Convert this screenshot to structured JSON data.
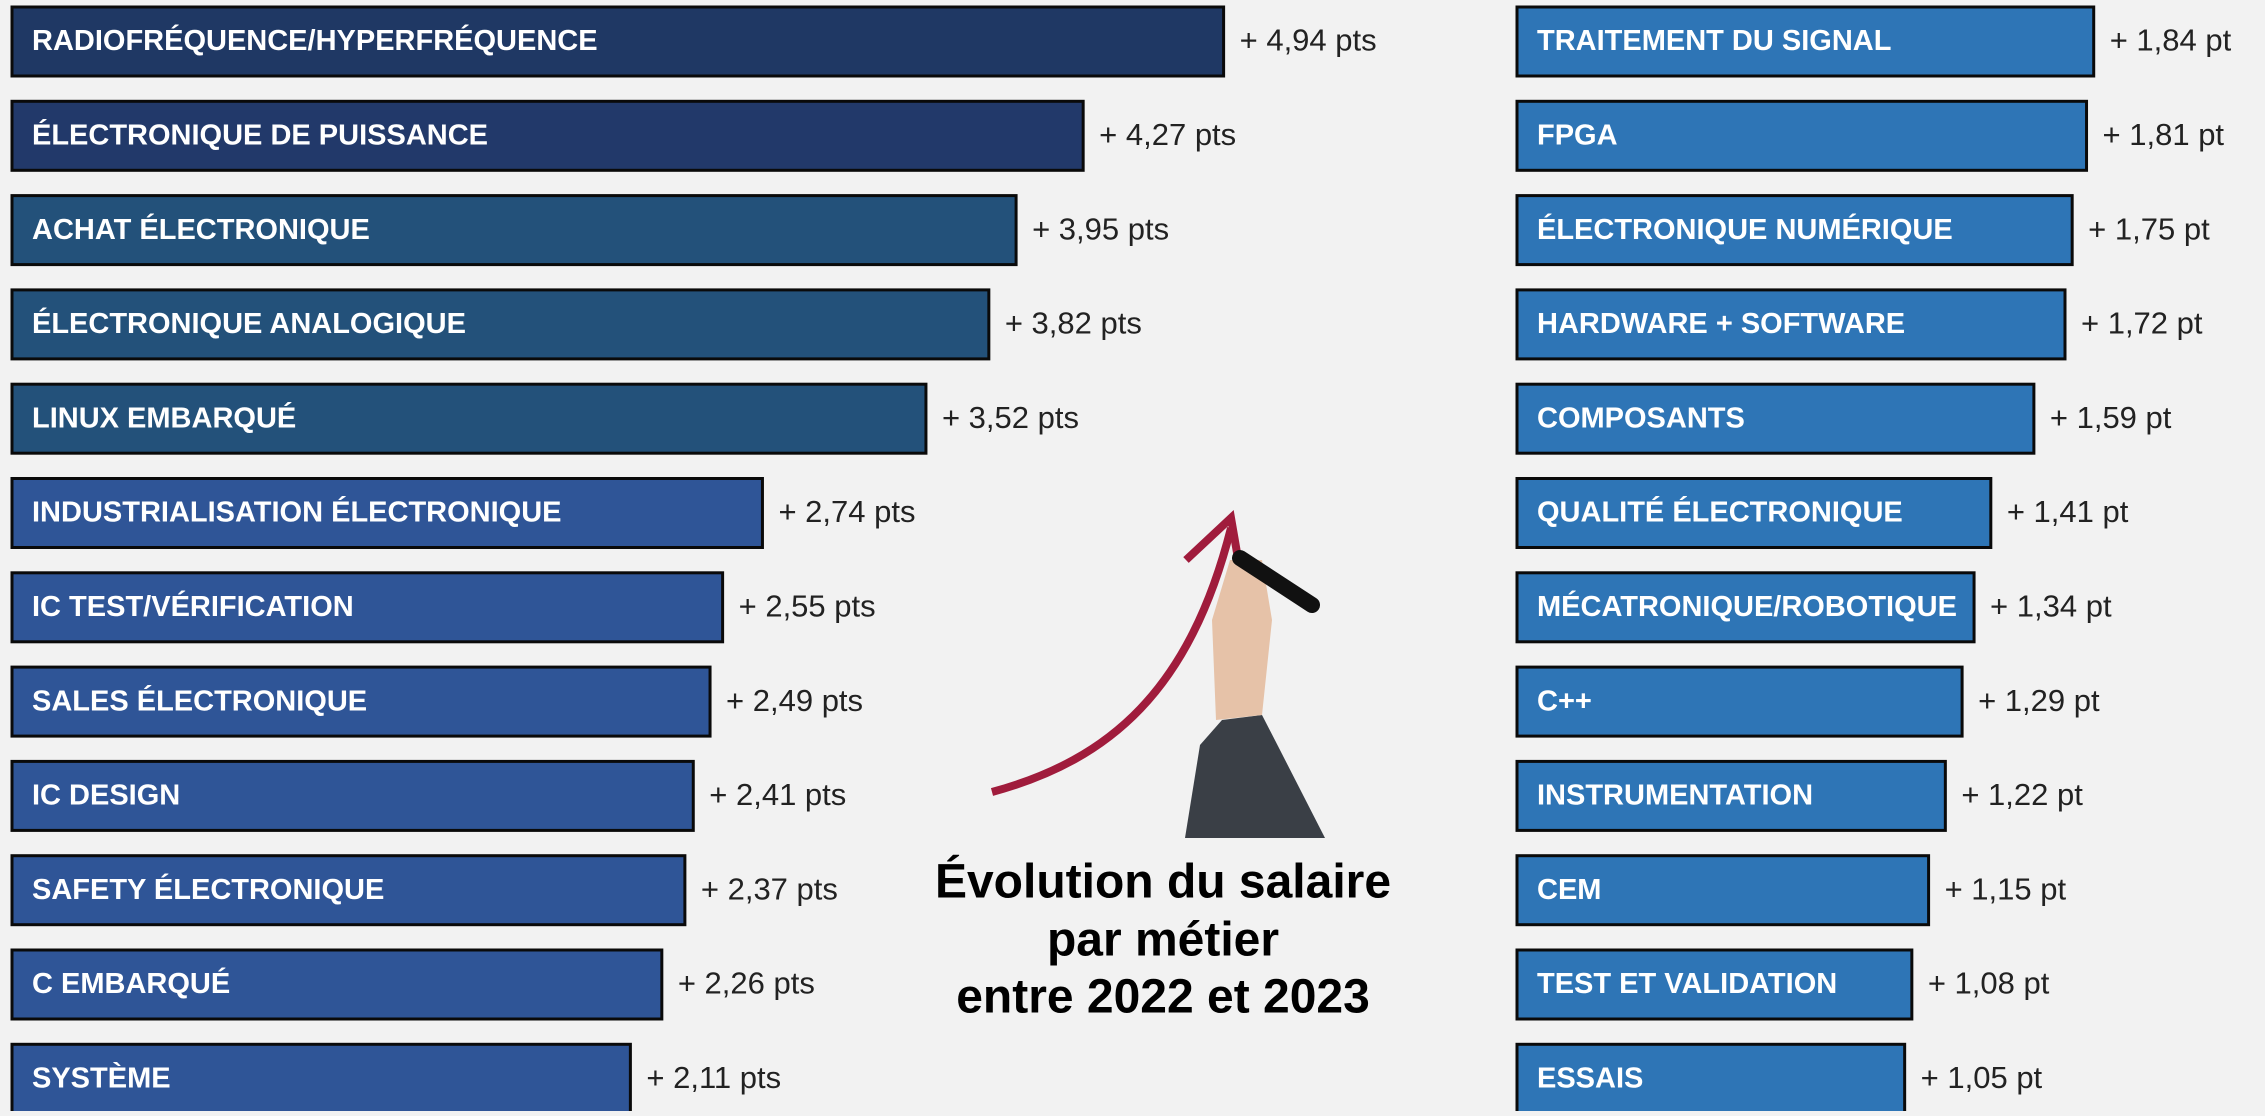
{
  "title": [
    "Évolution du salaire",
    "par métier",
    "entre 2022 et 2023"
  ],
  "chart_data": [
    {
      "type": "hbar",
      "categories": [
        "RADIOFRÉQUENCE/HYPERFRÉQUENCE",
        "ÉLECTRONIQUE DE PUISSANCE",
        "ACHAT ÉLECTRONIQUE",
        "ÉLECTRONIQUE ANALOGIQUE",
        "LINUX EMBARQUÉ",
        "INDUSTRIALISATION ÉLECTRONIQUE",
        "IC TEST/VÉRIFICATION",
        "SALES ÉLECTRONIQUE",
        "IC DESIGN",
        "SAFETY ÉLECTRONIQUE",
        "C EMBARQUÉ",
        "SYSTÈME"
      ],
      "values": [
        4.94,
        4.27,
        3.95,
        3.82,
        3.52,
        2.74,
        2.55,
        2.49,
        2.41,
        2.37,
        2.26,
        2.11
      ],
      "value_labels": [
        "+ 4,94 pts",
        "+ 4,27 pts",
        "+ 3,95 pts",
        "+ 3,82 pts",
        "+ 3,52 pts",
        "+ 2,74 pts",
        "+ 2,55 pts",
        "+ 2,49 pts",
        "+ 2,41 pts",
        "+ 2,37 pts",
        "+ 2,26 pts",
        "+ 2,11 pts"
      ],
      "colors": [
        "#1f3864",
        "#22396a",
        "#23517a",
        "#23517a",
        "#23517a",
        "#2f5597",
        "#2f5597",
        "#2f5597",
        "#2f5597",
        "#2f5597",
        "#2f5597",
        "#2f5597"
      ],
      "xlim": [
        -0.84,
        5.5
      ]
    },
    {
      "type": "hbar",
      "categories": [
        "TRAITEMENT DU SIGNAL",
        "FPGA",
        "ÉLECTRONIQUE NUMÉRIQUE",
        "HARDWARE + SOFTWARE",
        "COMPOSANTS",
        "QUALITÉ ÉLECTRONIQUE",
        "MÉCATRONIQUE/ROBOTIQUE",
        "C++",
        "INSTRUMENTATION",
        "CEM",
        "TEST ET VALIDATION",
        "ESSAIS"
      ],
      "values": [
        1.84,
        1.81,
        1.75,
        1.72,
        1.59,
        1.41,
        1.34,
        1.29,
        1.22,
        1.15,
        1.08,
        1.05
      ],
      "value_labels": [
        "+ 1,84 pt",
        "+ 1,81 pt",
        "+ 1,75 pt",
        "+ 1,72 pt",
        "+ 1,59 pt",
        "+ 1,41 pt",
        "+ 1,34 pt",
        "+ 1,29 pt",
        "+ 1,22 pt",
        "+ 1,15 pt",
        "+ 1,08 pt",
        "+ 1,05 pt"
      ],
      "colors": [
        "#2e75b6",
        "#2e75b6",
        "#2e75b6",
        "#2e75b6",
        "#2e75b6",
        "#2e75b6",
        "#2e75b6",
        "#2e75b6",
        "#2e75b6",
        "#2e75b6",
        "#2e75b6",
        "#2e75b6"
      ],
      "xlim": [
        -0.57,
        2.0
      ]
    }
  ]
}
